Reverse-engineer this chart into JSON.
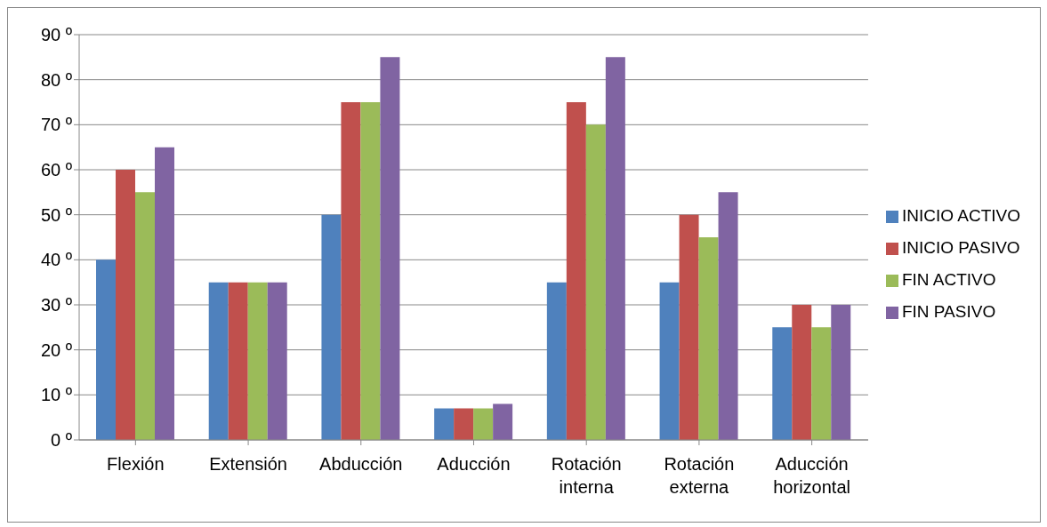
{
  "chart_data": {
    "type": "bar",
    "categories": [
      "Flexión",
      "Extensión",
      "Abducción",
      "Aducción",
      "Rotación interna",
      "Rotación externa",
      "Aducción horizontal"
    ],
    "series": [
      {
        "name": "INICIO  ACTIVO",
        "color": "#4f81bd",
        "values": [
          40,
          35,
          50,
          7,
          35,
          35,
          25
        ]
      },
      {
        "name": "INICIO  PASIVO",
        "color": "#c0504d",
        "values": [
          60,
          35,
          75,
          7,
          75,
          50,
          30
        ]
      },
      {
        "name": "FIN ACTIVO",
        "color": "#9bbb59",
        "values": [
          55,
          35,
          75,
          7,
          70,
          45,
          25
        ]
      },
      {
        "name": "FIN PASIVO",
        "color": "#8064a2",
        "values": [
          65,
          35,
          85,
          8,
          85,
          55,
          30
        ]
      }
    ],
    "ylim": [
      0,
      90
    ],
    "yticks": [
      {
        "value": 0,
        "label": "0 º"
      },
      {
        "value": 10,
        "label": "10 º"
      },
      {
        "value": 20,
        "label": "20 º"
      },
      {
        "value": 30,
        "label": "30 º"
      },
      {
        "value": 40,
        "label": "40 º"
      },
      {
        "value": 50,
        "label": "50 º"
      },
      {
        "value": 60,
        "label": "60 º"
      },
      {
        "value": 70,
        "label": "70 º"
      },
      {
        "value": 80,
        "label": "80 º"
      },
      {
        "value": 90,
        "label": "90 º"
      }
    ],
    "grid": "y",
    "legend": "right"
  }
}
